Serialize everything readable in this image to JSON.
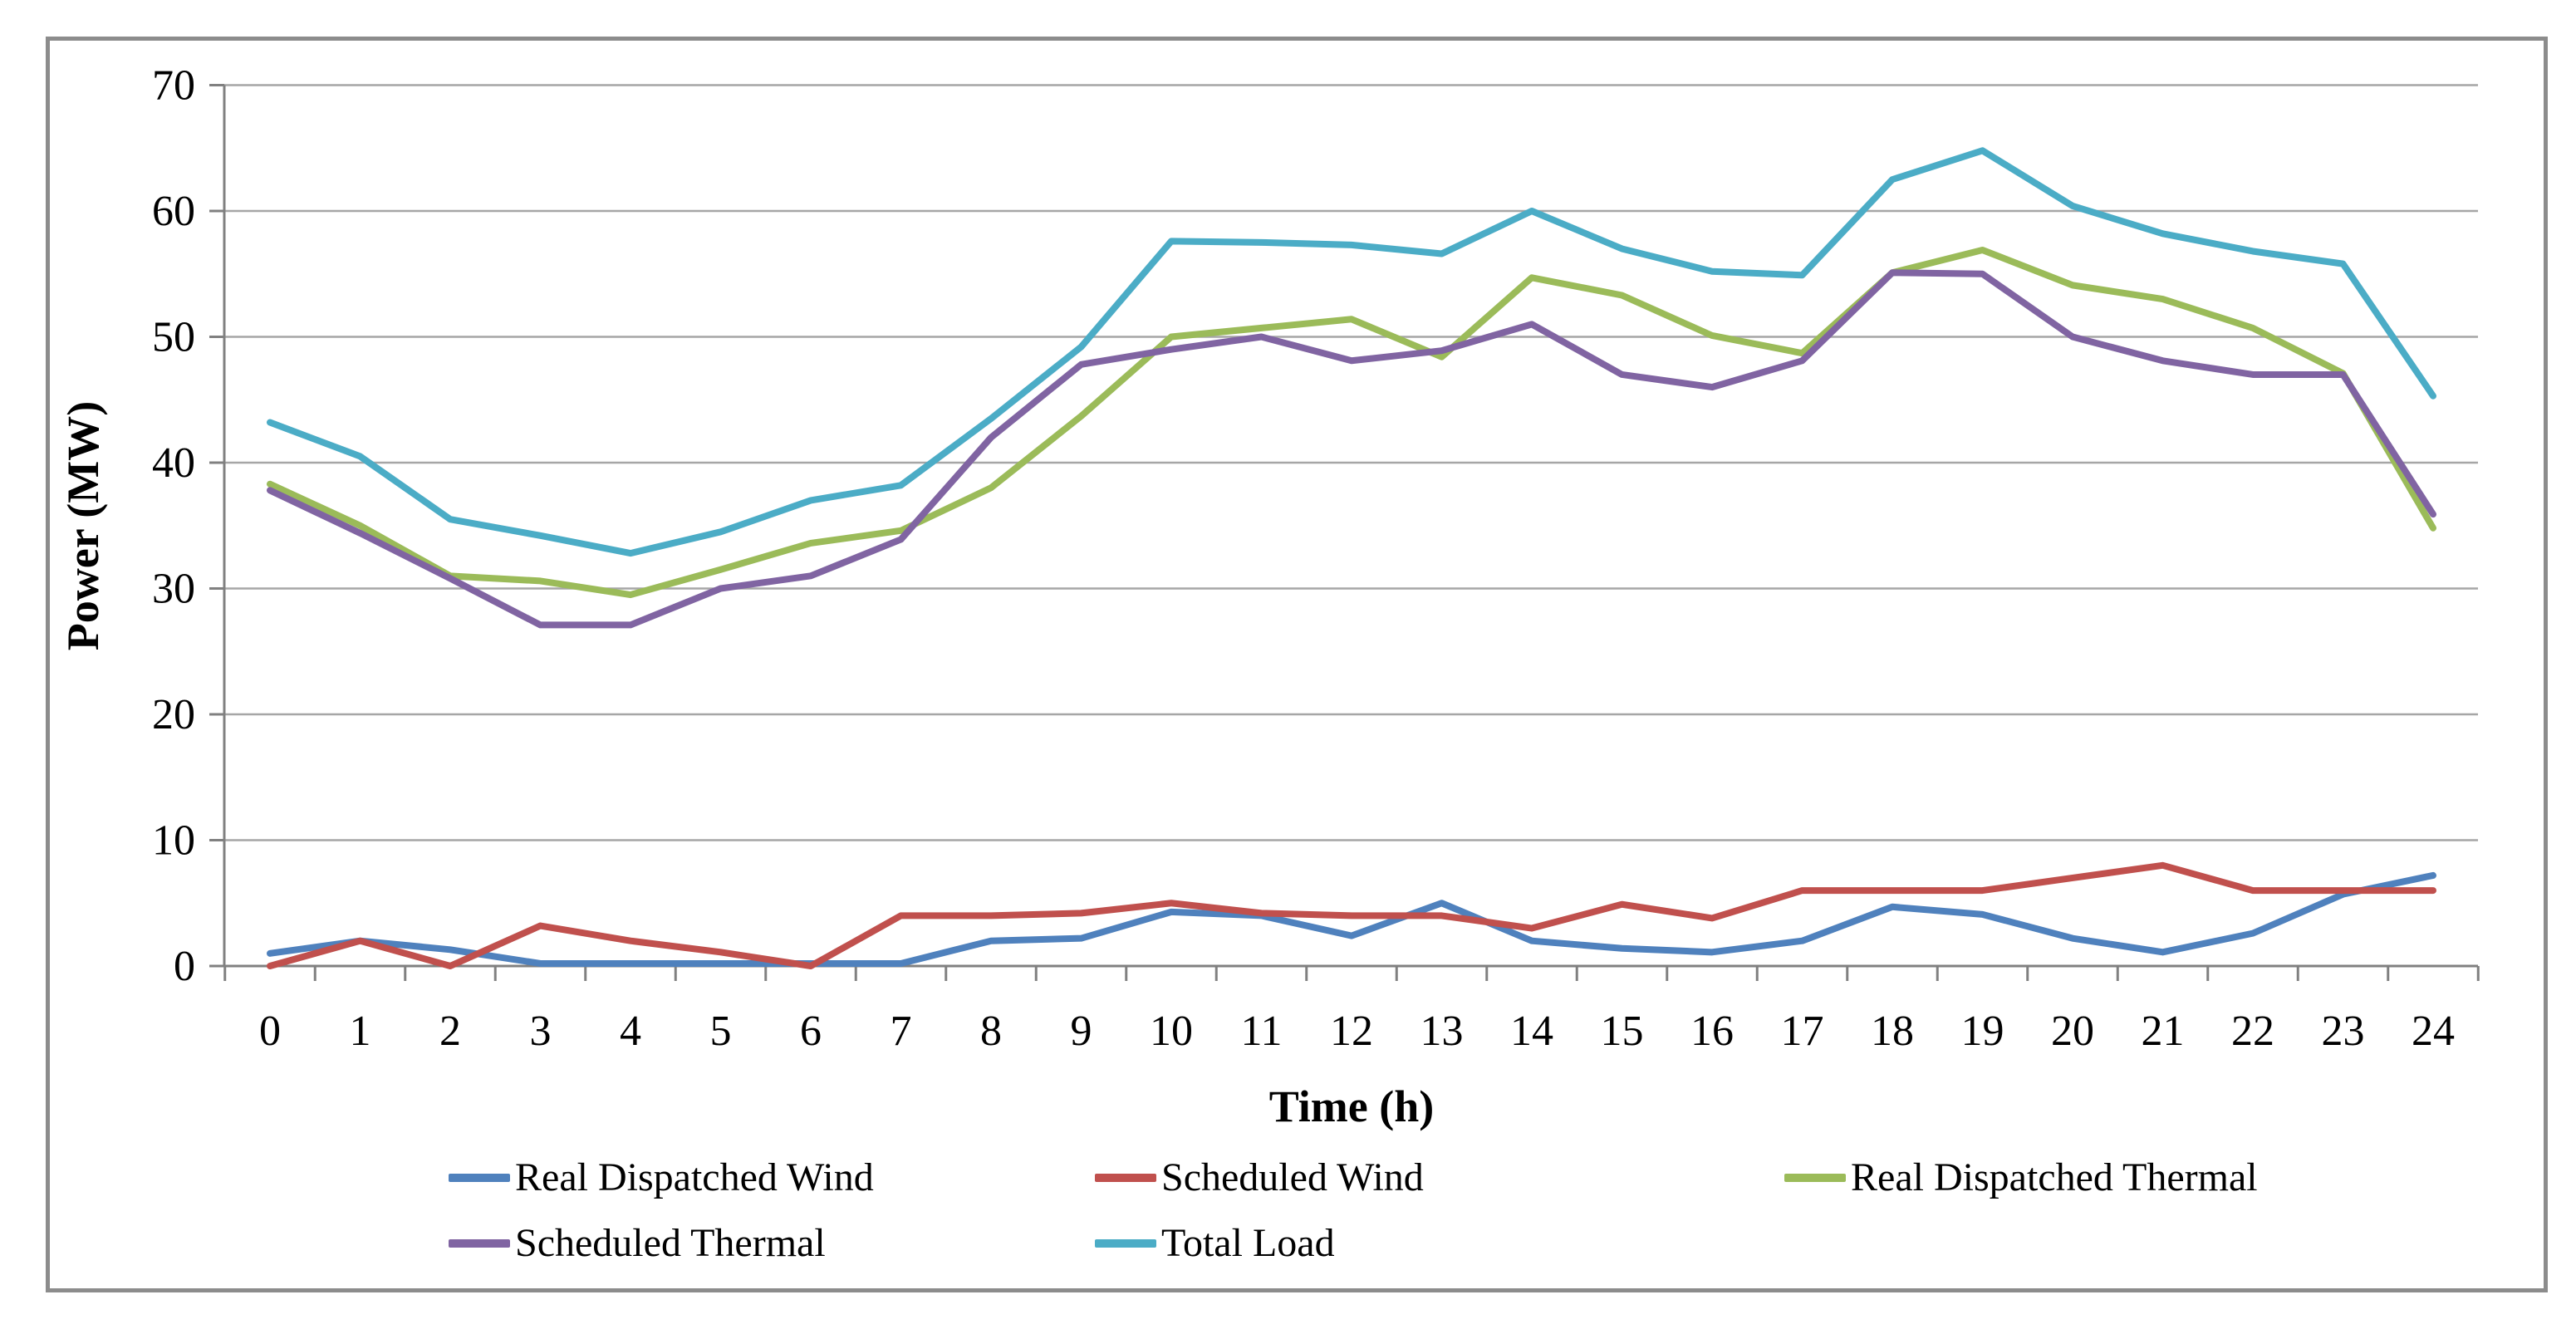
{
  "figure": {
    "background_color": "#FFFFFF",
    "border_color": "#8C8C8C",
    "gridline_color": "#A6A6A6",
    "axis_line_color": "#808080",
    "text_color": "#000000"
  },
  "chart_data": {
    "type": "line",
    "title": "",
    "xlabel": "Time (h)",
    "ylabel": "Power (MW)",
    "x": [
      0,
      1,
      2,
      3,
      4,
      5,
      6,
      7,
      8,
      9,
      10,
      11,
      12,
      13,
      14,
      15,
      16,
      17,
      18,
      19,
      20,
      21,
      22,
      23,
      24
    ],
    "x_tick_labels": [
      "0",
      "1",
      "2",
      "3",
      "4",
      "5",
      "6",
      "7",
      "8",
      "9",
      "10",
      "11",
      "12",
      "13",
      "14",
      "15",
      "16",
      "17",
      "18",
      "19",
      "20",
      "21",
      "22",
      "23",
      "24"
    ],
    "xlim": [
      0,
      24
    ],
    "ylim": [
      0,
      70
    ],
    "yticks": [
      0,
      10,
      20,
      30,
      40,
      50,
      60,
      70
    ],
    "y_tick_labels": [
      "0",
      "10",
      "20",
      "30",
      "40",
      "50",
      "60",
      "70"
    ],
    "grid": "horizontal",
    "legend_position": "bottom",
    "series": [
      {
        "name": "Real Dispatched Wind",
        "color": "#4F81BD",
        "values": [
          1.0,
          2.0,
          1.3,
          0.2,
          0.2,
          0.2,
          0.2,
          0.2,
          2.0,
          2.2,
          4.3,
          4.0,
          2.4,
          5.0,
          2.0,
          1.4,
          1.1,
          2.0,
          4.7,
          4.1,
          2.2,
          1.1,
          2.6,
          5.7,
          7.2
        ]
      },
      {
        "name": "Scheduled Wind",
        "color": "#C0504D",
        "values": [
          0.0,
          2.0,
          0.0,
          3.2,
          2.0,
          1.1,
          0.0,
          4.0,
          4.0,
          4.2,
          5.0,
          4.2,
          4.0,
          4.0,
          3.0,
          4.9,
          3.8,
          6.0,
          6.0,
          6.0,
          7.0,
          8.0,
          6.0,
          6.0,
          6.0
        ]
      },
      {
        "name": "Real Dispatched Thermal",
        "color": "#9BBB59",
        "values": [
          38.3,
          35.0,
          31.0,
          30.6,
          29.5,
          31.5,
          33.6,
          34.6,
          38.0,
          43.7,
          50.0,
          50.7,
          51.4,
          48.4,
          54.7,
          53.3,
          50.1,
          48.7,
          55.1,
          56.9,
          54.1,
          53.0,
          50.7,
          47.1,
          34.8
        ]
      },
      {
        "name": "Scheduled Thermal",
        "color": "#8064A2",
        "values": [
          37.8,
          34.4,
          30.8,
          27.1,
          27.1,
          30.0,
          31.0,
          33.9,
          42.0,
          47.8,
          49.0,
          50.0,
          48.1,
          48.9,
          51.0,
          47.0,
          46.0,
          48.1,
          55.1,
          55.0,
          50.0,
          48.1,
          47.0,
          47.0,
          35.9
        ]
      },
      {
        "name": "Total Load",
        "color": "#4BACC6",
        "values": [
          43.2,
          40.5,
          35.5,
          34.2,
          32.8,
          34.5,
          37.0,
          38.2,
          43.5,
          49.2,
          57.6,
          57.5,
          57.3,
          56.6,
          60.0,
          57.0,
          55.2,
          54.9,
          62.5,
          64.8,
          60.4,
          58.2,
          56.8,
          55.8,
          45.3
        ]
      }
    ],
    "legend_rows": [
      [
        0,
        1,
        2
      ],
      [
        3,
        4
      ]
    ]
  }
}
